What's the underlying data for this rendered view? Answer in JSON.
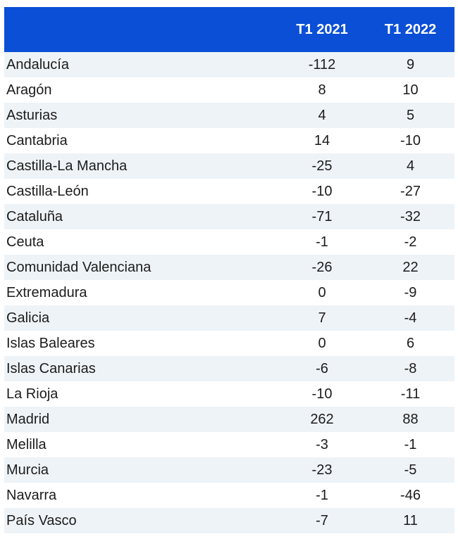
{
  "chart_data": {
    "type": "table",
    "columns": [
      "",
      "T1 2021",
      "T1 2022"
    ],
    "rows": [
      {
        "region": "Andalucía",
        "t1_2021": "-112",
        "t1_2022": "9"
      },
      {
        "region": "Aragón",
        "t1_2021": "8",
        "t1_2022": "10"
      },
      {
        "region": "Asturias",
        "t1_2021": "4",
        "t1_2022": "5"
      },
      {
        "region": "Cantabria",
        "t1_2021": "14",
        "t1_2022": "-10"
      },
      {
        "region": "Castilla-La Mancha",
        "t1_2021": "-25",
        "t1_2022": "4"
      },
      {
        "region": "Castilla-León",
        "t1_2021": "-10",
        "t1_2022": "-27"
      },
      {
        "region": "Cataluña",
        "t1_2021": "-71",
        "t1_2022": "-32"
      },
      {
        "region": "Ceuta",
        "t1_2021": "-1",
        "t1_2022": "-2"
      },
      {
        "region": "Comunidad Valenciana",
        "t1_2021": "-26",
        "t1_2022": "22"
      },
      {
        "region": "Extremadura",
        "t1_2021": "0",
        "t1_2022": "-9"
      },
      {
        "region": "Galicia",
        "t1_2021": "7",
        "t1_2022": "-4"
      },
      {
        "region": "Islas Baleares",
        "t1_2021": "0",
        "t1_2022": "6"
      },
      {
        "region": "Islas Canarias",
        "t1_2021": "-6",
        "t1_2022": "-8"
      },
      {
        "region": "La Rioja",
        "t1_2021": "-10",
        "t1_2022": "-11"
      },
      {
        "region": "Madrid",
        "t1_2021": "262",
        "t1_2022": "88"
      },
      {
        "region": "Melilla",
        "t1_2021": "-3",
        "t1_2022": "-1"
      },
      {
        "region": "Murcia",
        "t1_2021": "-23",
        "t1_2022": "-5"
      },
      {
        "region": "Navarra",
        "t1_2021": "-1",
        "t1_2022": "-46"
      },
      {
        "region": "País Vasco",
        "t1_2021": "-7",
        "t1_2022": "11"
      }
    ]
  },
  "colors": {
    "header_bg": "#0a4fd6",
    "header_text": "#ffffff",
    "row_stripe": "#eef3f7",
    "row_plain": "#ffffff",
    "cell_text": "#1c1c1c"
  }
}
